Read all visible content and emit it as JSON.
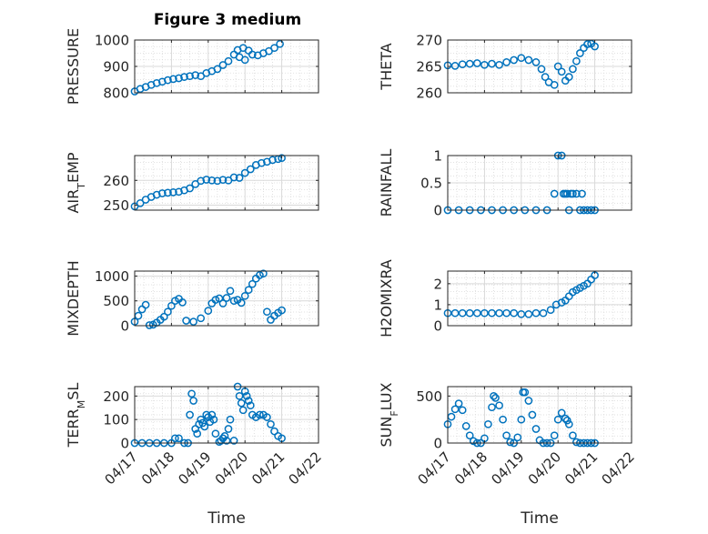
{
  "figure": {
    "title": "Figure 3 medium",
    "xlabel": "Time",
    "x_tick_labels": [
      "04/17",
      "04/18",
      "04/19",
      "04/20",
      "04/21",
      "04/22"
    ]
  },
  "style": {
    "marker_color": "#0072BD",
    "axis_color": "#262626",
    "grid_color": "#d9d9d9"
  },
  "chart_data": [
    {
      "type": "scatter",
      "ylabel": "PRESSURE",
      "ylim": [
        800,
        1000
      ],
      "yticks": [
        800,
        900,
        1000
      ],
      "xlim": [
        0,
        5
      ],
      "x": [
        0.0,
        0.15,
        0.3,
        0.45,
        0.6,
        0.75,
        0.9,
        1.05,
        1.2,
        1.35,
        1.5,
        1.65,
        1.8,
        1.95,
        2.1,
        2.25,
        2.4,
        2.55,
        2.7,
        2.8,
        2.85,
        2.95,
        3.0,
        3.1,
        3.2,
        3.35,
        3.5,
        3.65,
        3.8,
        3.95
      ],
      "y": [
        805,
        815,
        822,
        830,
        837,
        842,
        848,
        852,
        855,
        860,
        863,
        867,
        863,
        875,
        882,
        890,
        905,
        920,
        945,
        962,
        935,
        970,
        925,
        960,
        945,
        942,
        950,
        958,
        970,
        985
      ]
    },
    {
      "type": "scatter",
      "ylabel": "THETA",
      "ylim": [
        260,
        270
      ],
      "yticks": [
        260,
        265,
        270
      ],
      "xlim": [
        0,
        5
      ],
      "x": [
        0.0,
        0.2,
        0.4,
        0.6,
        0.8,
        1.0,
        1.2,
        1.4,
        1.6,
        1.8,
        2.0,
        2.2,
        2.4,
        2.55,
        2.65,
        2.75,
        2.9,
        3.0,
        3.1,
        3.2,
        3.3,
        3.4,
        3.5,
        3.6,
        3.7,
        3.8,
        3.9,
        4.0
      ],
      "y": [
        265.2,
        265.1,
        265.4,
        265.5,
        265.6,
        265.3,
        265.5,
        265.3,
        265.8,
        266.2,
        266.6,
        266.2,
        265.8,
        264.5,
        263.0,
        262.0,
        261.5,
        265.0,
        264.0,
        262.3,
        263.0,
        264.5,
        266.0,
        267.5,
        268.5,
        269.2,
        269.3,
        268.8
      ]
    },
    {
      "type": "scatter",
      "ylabel": "AIR_TEMP",
      "ylim": [
        248,
        270
      ],
      "yticks": [
        250,
        260
      ],
      "xlim": [
        0,
        5
      ],
      "x": [
        0.0,
        0.15,
        0.3,
        0.45,
        0.6,
        0.75,
        0.9,
        1.05,
        1.2,
        1.35,
        1.5,
        1.65,
        1.8,
        1.95,
        2.1,
        2.25,
        2.4,
        2.55,
        2.7,
        2.85,
        3.0,
        3.15,
        3.3,
        3.45,
        3.6,
        3.75,
        3.9,
        4.0
      ],
      "y": [
        249.5,
        250.8,
        252.2,
        253.3,
        254.2,
        254.8,
        255.0,
        255.2,
        255.4,
        256.0,
        256.8,
        258.5,
        259.8,
        260.3,
        260.0,
        259.8,
        260.2,
        260.0,
        261.2,
        261.0,
        263.0,
        264.5,
        266.2,
        267.0,
        267.5,
        268.2,
        268.6,
        269.0
      ]
    },
    {
      "type": "scatter",
      "ylabel": "RAINFALL",
      "ylim": [
        0,
        1
      ],
      "yticks": [
        0,
        0.5,
        1
      ],
      "xlim": [
        0,
        5
      ],
      "x": [
        0.0,
        0.3,
        0.6,
        0.9,
        1.2,
        1.5,
        1.8,
        2.1,
        2.4,
        2.7,
        2.9,
        3.0,
        3.1,
        3.15,
        3.2,
        3.25,
        3.3,
        3.35,
        3.4,
        3.5,
        3.6,
        3.65,
        3.7,
        3.8,
        3.9,
        4.0
      ],
      "y": [
        0,
        0,
        0,
        0,
        0,
        0,
        0,
        0,
        0,
        0,
        0.3,
        1.0,
        1.0,
        0.3,
        0.3,
        0.3,
        0.0,
        0.3,
        0.3,
        0.3,
        0.0,
        0.3,
        0.0,
        0.0,
        0.0,
        0.0
      ]
    },
    {
      "type": "scatter",
      "ylabel": "MIXDEPTH",
      "ylim": [
        0,
        1100
      ],
      "yticks": [
        0,
        500,
        1000
      ],
      "xlim": [
        0,
        5
      ],
      "x": [
        0.0,
        0.1,
        0.2,
        0.3,
        0.4,
        0.5,
        0.6,
        0.7,
        0.8,
        0.9,
        1.0,
        1.1,
        1.2,
        1.3,
        1.4,
        1.6,
        1.8,
        2.0,
        2.1,
        2.2,
        2.3,
        2.4,
        2.5,
        2.6,
        2.7,
        2.8,
        2.9,
        3.0,
        3.1,
        3.2,
        3.3,
        3.4,
        3.5,
        3.6,
        3.7,
        3.8,
        3.9,
        4.0
      ],
      "y": [
        80,
        200,
        330,
        420,
        10,
        20,
        60,
        120,
        180,
        280,
        400,
        500,
        540,
        470,
        100,
        80,
        150,
        300,
        450,
        520,
        550,
        450,
        560,
        700,
        500,
        520,
        460,
        600,
        720,
        840,
        950,
        1020,
        1050,
        280,
        120,
        200,
        260,
        310
      ]
    },
    {
      "type": "scatter",
      "ylabel": "H2OMIXRA",
      "ylim": [
        0,
        2.6
      ],
      "yticks": [
        0,
        1,
        2
      ],
      "xlim": [
        0,
        5
      ],
      "x": [
        0.0,
        0.2,
        0.4,
        0.6,
        0.8,
        1.0,
        1.2,
        1.4,
        1.6,
        1.8,
        2.0,
        2.2,
        2.4,
        2.6,
        2.8,
        2.95,
        3.1,
        3.2,
        3.3,
        3.4,
        3.5,
        3.6,
        3.7,
        3.8,
        3.9,
        4.0
      ],
      "y": [
        0.6,
        0.6,
        0.6,
        0.6,
        0.6,
        0.6,
        0.6,
        0.6,
        0.6,
        0.6,
        0.55,
        0.55,
        0.6,
        0.6,
        0.75,
        1.0,
        1.1,
        1.2,
        1.4,
        1.6,
        1.7,
        1.8,
        1.9,
        2.0,
        2.2,
        2.4
      ]
    },
    {
      "type": "scatter",
      "ylabel": "TERR_MSL",
      "ylim": [
        0,
        240
      ],
      "yticks": [
        0,
        100,
        200
      ],
      "xlim": [
        0,
        5
      ],
      "x": [
        0.0,
        0.2,
        0.4,
        0.6,
        0.8,
        1.0,
        1.1,
        1.2,
        1.35,
        1.45,
        1.5,
        1.55,
        1.6,
        1.65,
        1.7,
        1.75,
        1.8,
        1.85,
        1.9,
        1.95,
        2.0,
        2.05,
        2.1,
        2.15,
        2.2,
        2.3,
        2.35,
        2.4,
        2.45,
        2.5,
        2.55,
        2.6,
        2.7,
        2.8,
        2.85,
        2.9,
        2.95,
        3.0,
        3.05,
        3.1,
        3.15,
        3.2,
        3.3,
        3.4,
        3.5,
        3.6,
        3.7,
        3.8,
        3.9,
        4.0
      ],
      "y": [
        0,
        0,
        0,
        0,
        0,
        0,
        20,
        20,
        0,
        0,
        120,
        210,
        180,
        60,
        40,
        80,
        100,
        85,
        70,
        120,
        110,
        90,
        120,
        100,
        40,
        5,
        10,
        20,
        30,
        10,
        60,
        100,
        10,
        240,
        200,
        170,
        140,
        220,
        200,
        180,
        160,
        120,
        110,
        120,
        120,
        110,
        80,
        50,
        30,
        20
      ]
    },
    {
      "type": "scatter",
      "ylabel": "SUN_FLUX",
      "ylim": [
        0,
        600
      ],
      "yticks": [
        0,
        500
      ],
      "xlim": [
        0,
        5
      ],
      "x": [
        0.0,
        0.1,
        0.2,
        0.3,
        0.4,
        0.5,
        0.6,
        0.7,
        0.8,
        0.9,
        1.0,
        1.1,
        1.2,
        1.25,
        1.3,
        1.4,
        1.5,
        1.6,
        1.7,
        1.8,
        1.9,
        2.0,
        2.05,
        2.1,
        2.2,
        2.3,
        2.4,
        2.5,
        2.6,
        2.7,
        2.8,
        2.9,
        3.0,
        3.1,
        3.2,
        3.25,
        3.3,
        3.4,
        3.5,
        3.6,
        3.7,
        3.8,
        3.9,
        4.0
      ],
      "y": [
        200,
        280,
        360,
        420,
        350,
        180,
        80,
        20,
        0,
        0,
        50,
        200,
        380,
        500,
        480,
        400,
        250,
        80,
        10,
        0,
        60,
        250,
        540,
        540,
        450,
        300,
        150,
        30,
        0,
        0,
        0,
        80,
        250,
        320,
        260,
        240,
        200,
        80,
        10,
        0,
        0,
        0,
        0,
        0
      ]
    }
  ]
}
